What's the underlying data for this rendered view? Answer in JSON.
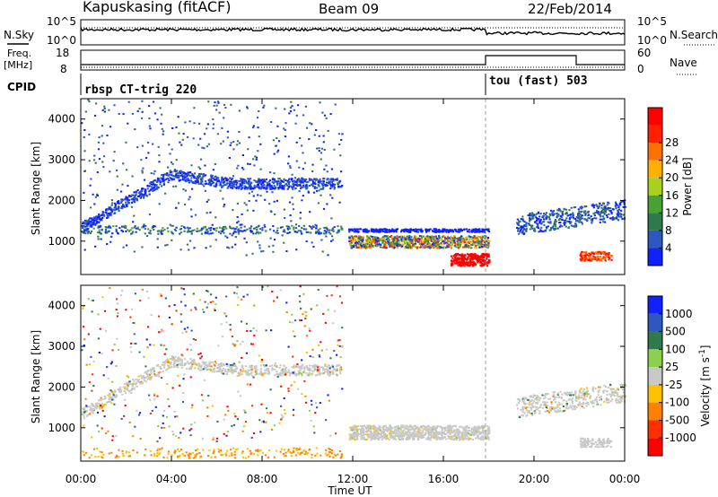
{
  "header": {
    "station": "Kapuskasing (fitACF)",
    "beam": "Beam 09",
    "date": "22/Feb/2014"
  },
  "noise_panel": {
    "left_label": "N.Sky",
    "right_label": "N.Search",
    "left_ticks": [
      "10^5",
      "10^0"
    ],
    "right_ticks": [
      "10^5",
      "10^0"
    ]
  },
  "freq_panel": {
    "left_label_1": "Freq.",
    "left_label_2": "[MHz]",
    "right_label": "Nave",
    "left_ticks": [
      "18",
      "8"
    ],
    "right_ticks": [
      "60",
      "0"
    ]
  },
  "cpid_panel": {
    "label": "CPID",
    "programs": [
      "rbsp CT-trig 220",
      "tou (fast) 503"
    ],
    "switch_time": "18:00"
  },
  "colors": {
    "power_scale": [
      "#1020ff",
      "#2c58c0",
      "#2f7a4c",
      "#4aa030",
      "#a8d01c",
      "#ffb000",
      "#ff7000",
      "#ff2000",
      "#ff0000"
    ],
    "velocity_scale": [
      "#1020ff",
      "#2c58c0",
      "#2f7a4c",
      "#8dd050",
      "#c8c8c8",
      "#ffc000",
      "#ff8000",
      "#ff3000",
      "#ff0000"
    ]
  },
  "chart_data": [
    {
      "type": "heatmap",
      "title": "Power",
      "ylabel": "Slant Range [km]",
      "ylim": [
        180,
        4500
      ],
      "yticks": [
        "1000",
        "2000",
        "3000",
        "4000"
      ],
      "colorbar_label": "Power [dB]",
      "colorbar_ticks": [
        "4",
        "8",
        "12",
        "16",
        "20",
        "24",
        "28"
      ],
      "features": [
        {
          "name": "main band",
          "x": [
            0,
            2,
            4,
            6,
            8,
            10,
            11.5
          ],
          "y": [
            1350,
            2000,
            2650,
            2600,
            2400,
            2400,
            2350
          ]
        },
        {
          "name": "lower echo band",
          "x": [
            12,
            14,
            16,
            17.5
          ],
          "y": [
            1100,
            1100,
            1050,
            1000
          ]
        },
        {
          "name": "late band",
          "x": [
            19.5,
            21,
            22,
            23.5
          ],
          "y": [
            1100,
            1500,
            1450,
            1600
          ]
        }
      ]
    },
    {
      "type": "heatmap",
      "title": "Velocity",
      "ylabel": "Slant Range [km]",
      "xlabel": "Time UT",
      "ylim": [
        180,
        4500
      ],
      "yticks": [
        "1000",
        "2000",
        "3000",
        "4000"
      ],
      "xticks": [
        "00:00",
        "04:00",
        "08:00",
        "12:00",
        "16:00",
        "20:00",
        "00:00"
      ],
      "colorbar_label": "Velocity [m s^-1]",
      "colorbar_ticks": [
        "1000",
        "500",
        "100",
        "25",
        "-25",
        "-100",
        "-500",
        "-1000"
      ]
    }
  ]
}
